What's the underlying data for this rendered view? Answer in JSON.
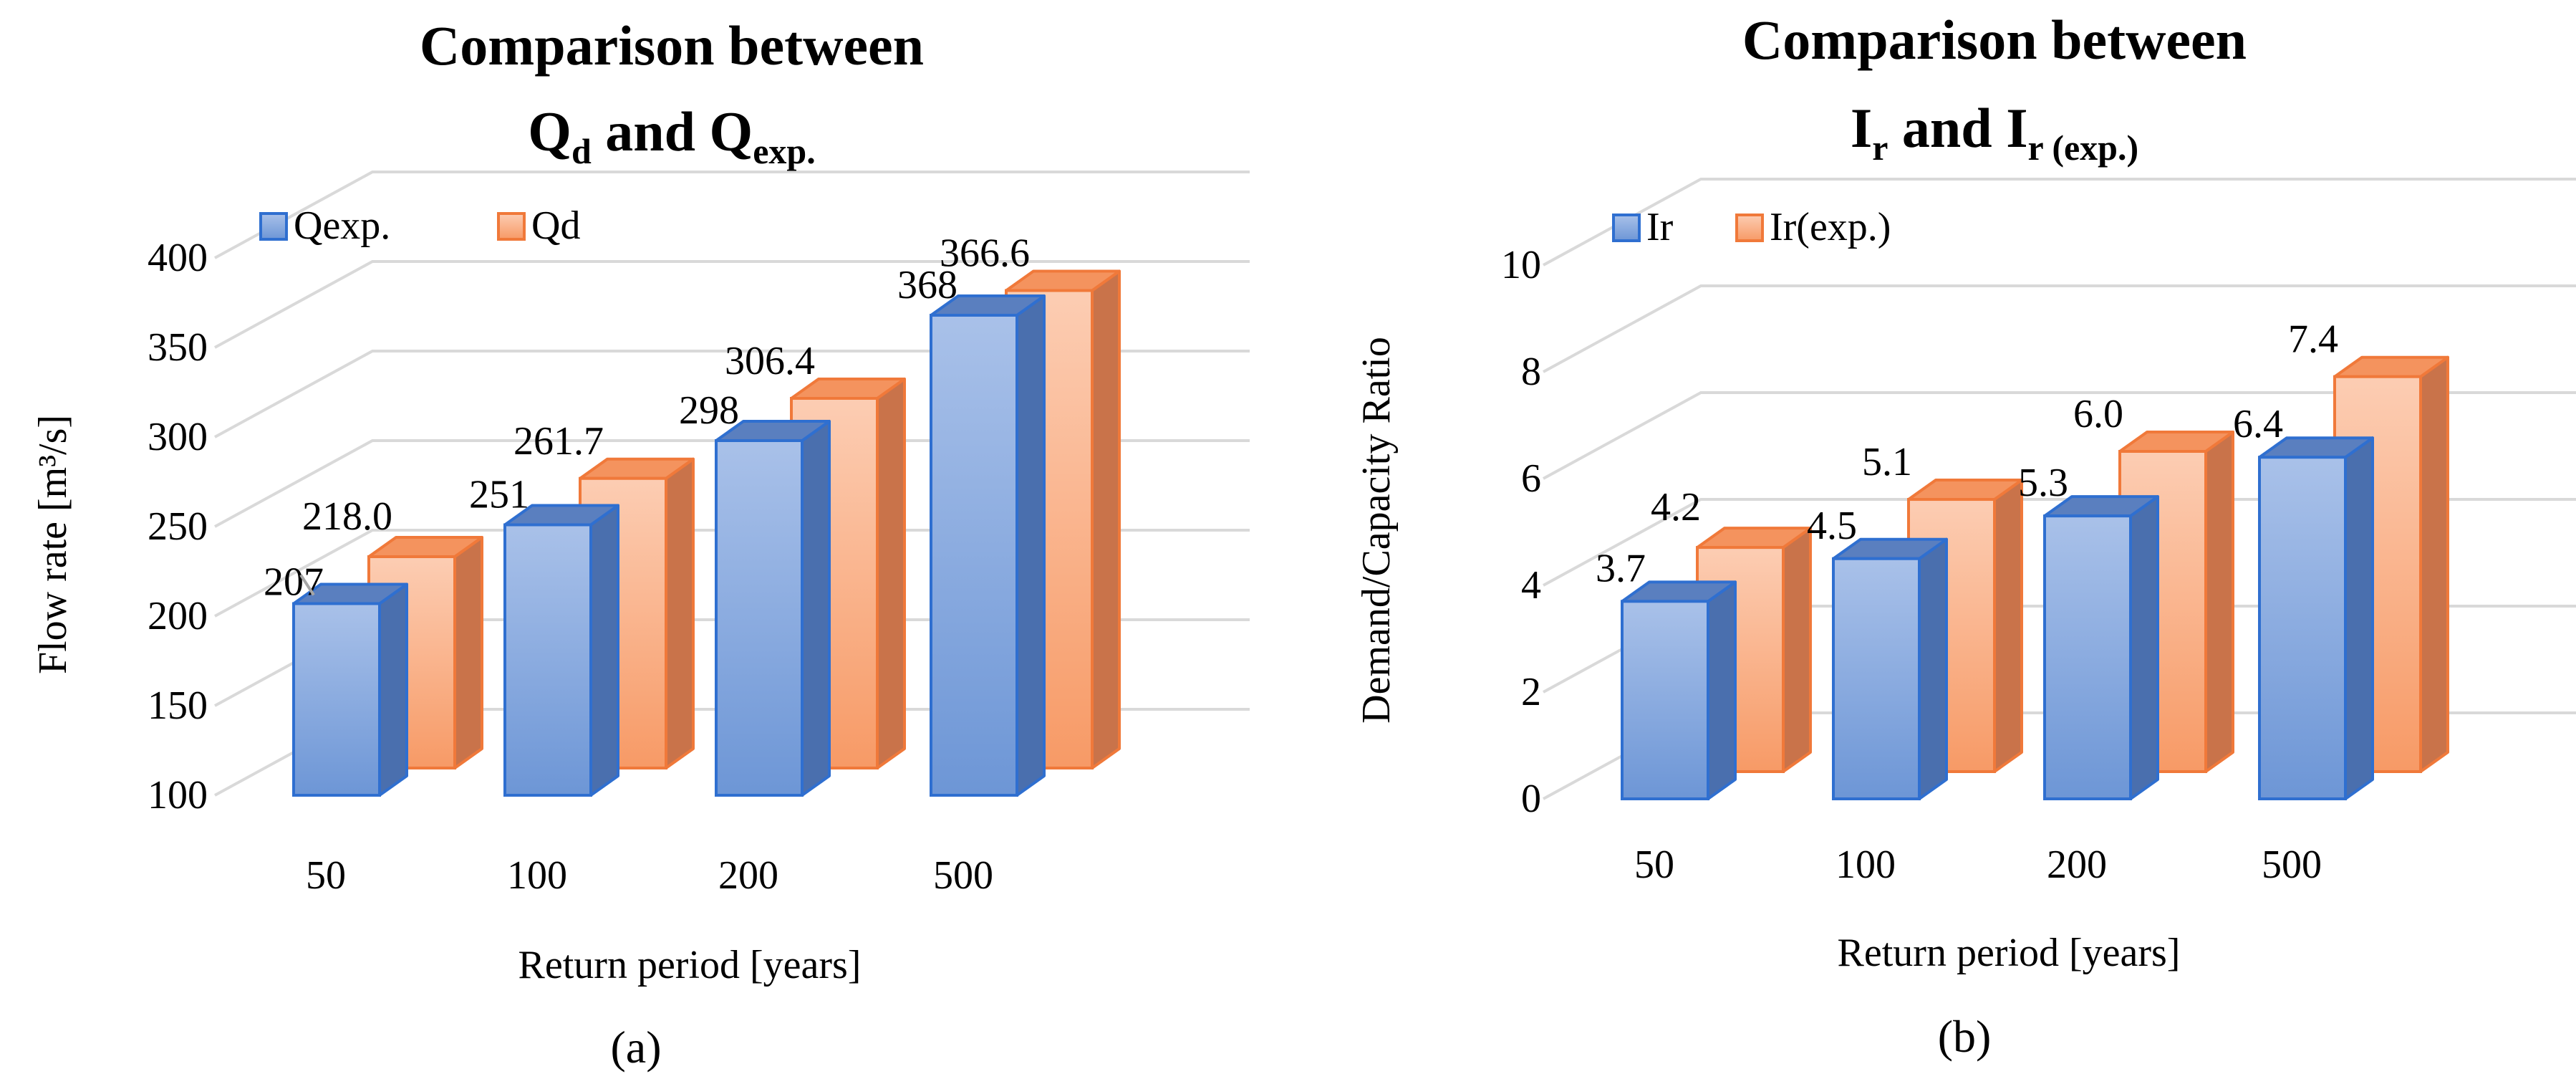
{
  "chart_data": [
    {
      "type": "bar",
      "title_main": "Comparison between",
      "title_line2": {
        "a_base": "Q",
        "a_sub": "d",
        "mid": " and ",
        "b_base": "Q",
        "b_sub": "exp."
      },
      "xlabel": "Return period [years]",
      "ylabel": "Flow rate [m³/s]",
      "ylim": [
        100,
        400
      ],
      "yticks": [
        "100",
        "150",
        "200",
        "250",
        "300",
        "350",
        "400"
      ],
      "categories": [
        "50",
        "100",
        "200",
        "500"
      ],
      "series": [
        {
          "name": "Qexp.",
          "color": "#7ea4dc",
          "values": [
            207,
            251,
            298,
            368
          ],
          "labels": [
            "207",
            "251",
            "298",
            "368"
          ]
        },
        {
          "name": "Qd",
          "color": "#f9a77a",
          "values": [
            218.0,
            261.7,
            306.4,
            366.6
          ],
          "labels": [
            "218.0",
            "261.7",
            "306.4",
            "366.6"
          ]
        }
      ],
      "legend_position": "top-left",
      "panel_label": "(a)"
    },
    {
      "type": "bar",
      "title_main": "Comparison between",
      "title_line2": {
        "a_base": "I",
        "a_sub": "r",
        "mid": " and ",
        "b_base": "I",
        "b_sub": "r (exp.)"
      },
      "xlabel": "Return period [years]",
      "ylabel": "Demand/Capacity Ratio",
      "ylim": [
        0,
        10
      ],
      "yticks": [
        "0",
        "2",
        "4",
        "6",
        "8",
        "10"
      ],
      "categories": [
        "50",
        "100",
        "200",
        "500"
      ],
      "series": [
        {
          "name": "Ir",
          "color": "#7ea4dc",
          "values": [
            3.7,
            4.5,
            5.3,
            6.4
          ],
          "labels": [
            "3.7",
            "4.5",
            "5.3",
            "6.4"
          ]
        },
        {
          "name": "Ir(exp.)",
          "color": "#f9a77a",
          "values": [
            4.2,
            5.1,
            6.0,
            7.4
          ],
          "labels": [
            "4.2",
            "5.1",
            "6.0",
            "7.4"
          ]
        }
      ],
      "legend_position": "top-left",
      "panel_label": "(b)"
    }
  ]
}
